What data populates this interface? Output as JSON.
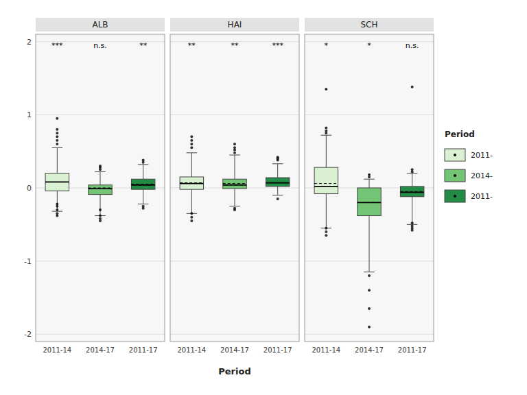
{
  "chart_data": {
    "type": "box",
    "xlabel": "Period",
    "legend": "right",
    "legend_title": "Period",
    "grid": true,
    "ylim": [
      -2.1,
      2.1
    ],
    "yticks": [
      -2,
      -1,
      0,
      1,
      2
    ],
    "categories": [
      "2011-14",
      "2014-17",
      "2011-17"
    ],
    "series": [
      {
        "name": "2011-",
        "color": "#d9f0d3"
      },
      {
        "name": "2014-",
        "color": "#74c476"
      },
      {
        "name": "2011-",
        "color": "#238b45"
      }
    ],
    "facets": [
      {
        "title": "ALB",
        "significance": [
          "***",
          "n.s.",
          "**"
        ],
        "boxes": [
          {
            "q1": -0.04,
            "median": 0.08,
            "q3": 0.2,
            "whislo": -0.32,
            "whishi": 0.55,
            "mean": 0.08,
            "outliers": [
              -0.38,
              -0.35,
              -0.3,
              -0.25,
              -0.22,
              0.6,
              0.65,
              0.7,
              0.75,
              0.8,
              0.95
            ]
          },
          {
            "q1": -0.09,
            "median": -0.01,
            "q3": 0.04,
            "whislo": -0.38,
            "whishi": 0.22,
            "mean": 0.0,
            "outliers": [
              -0.45,
              -0.42,
              -0.38,
              -0.3,
              0.25,
              0.28,
              0.3
            ]
          },
          {
            "q1": -0.02,
            "median": 0.04,
            "q3": 0.12,
            "whislo": -0.22,
            "whishi": 0.32,
            "mean": 0.05,
            "outliers": [
              -0.28,
              -0.25,
              0.35,
              0.38
            ]
          }
        ]
      },
      {
        "title": "HAI",
        "significance": [
          "**",
          "**",
          "***"
        ],
        "boxes": [
          {
            "q1": -0.02,
            "median": 0.06,
            "q3": 0.15,
            "whislo": -0.35,
            "whishi": 0.48,
            "mean": 0.07,
            "outliers": [
              -0.45,
              -0.4,
              -0.35,
              0.55,
              0.6,
              0.65,
              0.7
            ]
          },
          {
            "q1": -0.01,
            "median": 0.04,
            "q3": 0.12,
            "whislo": -0.25,
            "whishi": 0.45,
            "mean": 0.06,
            "outliers": [
              -0.3,
              -0.28,
              0.48,
              0.52,
              0.55,
              0.6
            ]
          },
          {
            "q1": 0.02,
            "median": 0.07,
            "q3": 0.14,
            "whislo": -0.1,
            "whishi": 0.33,
            "mean": 0.07,
            "outliers": [
              -0.15,
              0.38,
              0.4,
              0.42
            ]
          }
        ]
      },
      {
        "title": "SCH",
        "significance": [
          "*",
          "*",
          "n.s."
        ],
        "boxes": [
          {
            "q1": -0.08,
            "median": 0.02,
            "q3": 0.28,
            "whislo": -0.55,
            "whishi": 0.72,
            "mean": 0.06,
            "outliers": [
              -0.65,
              -0.6,
              -0.55,
              0.75,
              0.78,
              0.82,
              1.35
            ]
          },
          {
            "q1": -0.38,
            "median": -0.2,
            "q3": 0.0,
            "whislo": -1.15,
            "whishi": 0.12,
            "mean": -0.2,
            "outliers": [
              -1.9,
              -1.65,
              -1.4,
              -1.2,
              0.15,
              0.18
            ]
          },
          {
            "q1": -0.12,
            "median": -0.06,
            "q3": 0.02,
            "whislo": -0.5,
            "whishi": 0.2,
            "mean": -0.05,
            "outliers": [
              -0.58,
              -0.55,
              -0.52,
              -0.48,
              0.22,
              0.25,
              1.38
            ]
          }
        ]
      }
    ]
  }
}
